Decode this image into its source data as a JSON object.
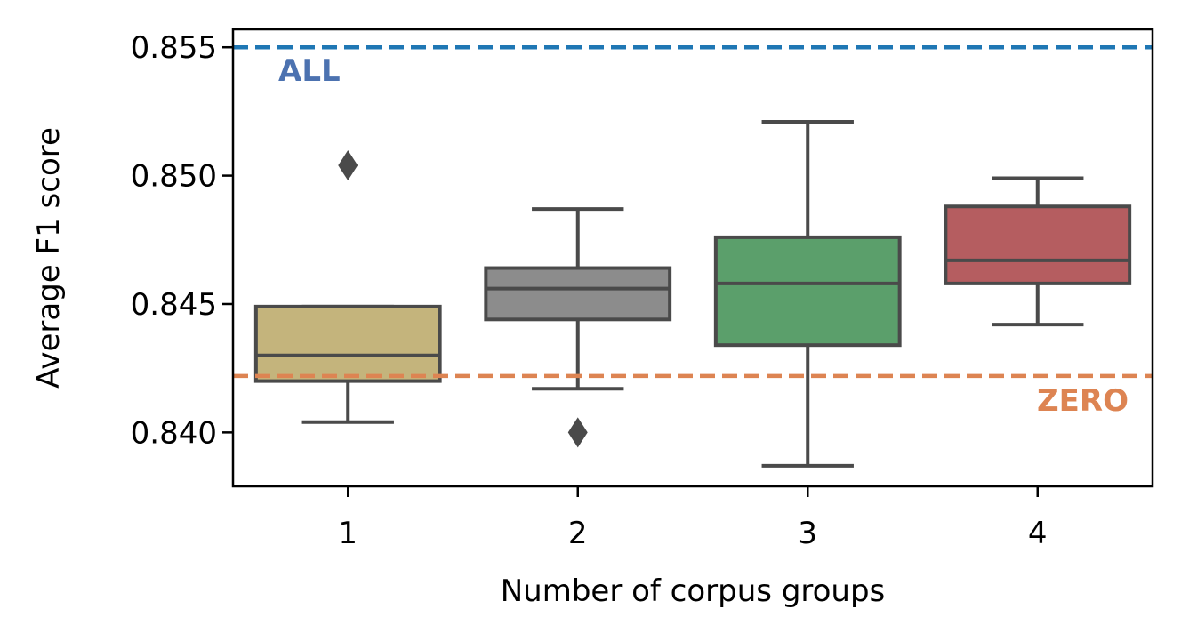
{
  "chart_data": {
    "type": "boxplot",
    "xlabel": "Number of corpus groups",
    "ylabel": "Average F1 score",
    "categories": [
      "1",
      "2",
      "3",
      "4"
    ],
    "ylim": [
      0.8379,
      0.8557
    ],
    "yticks": [
      0.84,
      0.845,
      0.85,
      0.855
    ],
    "ytick_labels": [
      "0.840",
      "0.845",
      "0.850",
      "0.855"
    ],
    "grid": false,
    "boxes": [
      {
        "category": "1",
        "whisker_low": 0.8404,
        "q1": 0.842,
        "median": 0.843,
        "q3": 0.8449,
        "whisker_high": 0.8449,
        "outliers": [
          0.8504
        ],
        "color": "#c4b47c"
      },
      {
        "category": "2",
        "whisker_low": 0.8417,
        "q1": 0.8444,
        "median": 0.8456,
        "q3": 0.8464,
        "whisker_high": 0.8487,
        "outliers": [
          0.84
        ],
        "color": "#8c8c8c"
      },
      {
        "category": "3",
        "whisker_low": 0.8387,
        "q1": 0.8434,
        "median": 0.8458,
        "q3": 0.8476,
        "whisker_high": 0.8521,
        "outliers": [],
        "color": "#5b9f6b"
      },
      {
        "category": "4",
        "whisker_low": 0.8442,
        "q1": 0.8458,
        "median": 0.8467,
        "q3": 0.8488,
        "whisker_high": 0.8499,
        "outliers": [],
        "color": "#b55d60"
      }
    ],
    "reference_lines": [
      {
        "label": "ALL",
        "value": 0.855,
        "color": "#1f77b4",
        "label_color": "#4c72b0",
        "style": "dashed"
      },
      {
        "label": "ZERO",
        "value": 0.8422,
        "color": "#dd8452",
        "label_color": "#dd8452",
        "style": "dashed"
      }
    ]
  }
}
